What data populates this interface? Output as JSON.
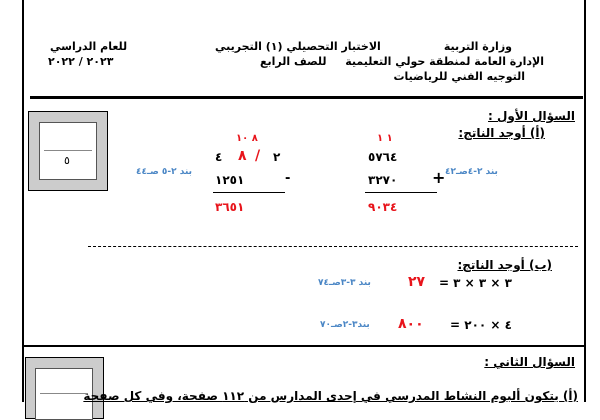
{
  "header": {
    "ministry": "وزارة التربية",
    "district": "الإدارة العامة لمنطقة حولي التعليمية",
    "department": "التوجيه الفني للرياضيات",
    "exam_title": "الاختبار التحصيلي (١) التجريبي",
    "grade": "للصف الرابع",
    "year_label": "للعام الدراسي",
    "year": "٢٠٢٣ / ٢٠٢٢"
  },
  "q1": {
    "title": "السؤال الأول :",
    "part_a": "(أ) أوجد الناتج:",
    "score": "٥",
    "addition": {
      "carries": "١ ١",
      "top": "٥٧٦٤",
      "bottom": "٣٢٧٠",
      "op": "+",
      "result": "٩٠٣٤",
      "ref": "بند ٢-٤صـ٤٢"
    },
    "subtraction": {
      "carries": "٨ ١٠",
      "top_left": "٤",
      "crossed_1": "٨",
      "crossed_2": "/",
      "top_right": "٢",
      "bottom": "١٢٥١",
      "op": "-",
      "result": "٣٦٥١",
      "ref": "بند ٢-٥ صـ٤٤"
    },
    "part_b": "(ب) أوجد الناتج:",
    "eq1": {
      "expr": "٣ × ٣ × ٣ =",
      "answer": "٢٧",
      "ref": "بند ٣-٣صـ٧٤"
    },
    "eq2": {
      "expr": "٤ × ٢٠٠ =",
      "answer": "٨٠٠",
      "ref": "بند٣-٢صـ٧٠"
    }
  },
  "q2": {
    "title": "السؤال الثاني :",
    "part_a": "(أ) يتكون ألبوم النشاط المدرسي في إحدى المدارس من ١١٢ صفحة، وفي كل صفحة"
  },
  "colors": {
    "answer": "#e8141b",
    "reference": "#4a86c5"
  }
}
